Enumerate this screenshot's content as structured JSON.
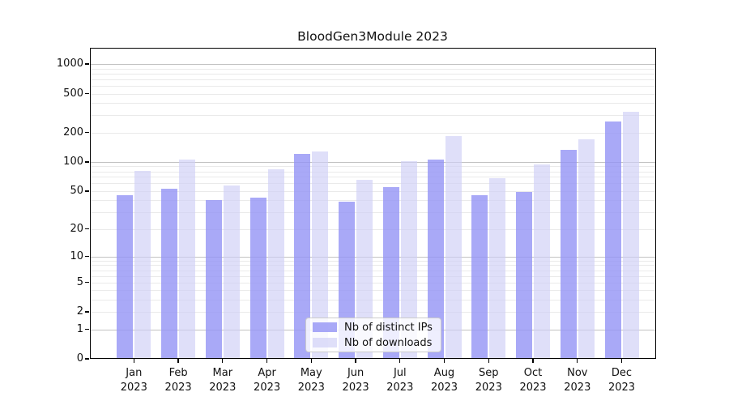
{
  "chart_data": {
    "type": "bar",
    "title": "BloodGen3Module 2023",
    "categories": [
      "Jan 2023",
      "Feb 2023",
      "Mar 2023",
      "Apr 2023",
      "May 2023",
      "Jun 2023",
      "Jul 2023",
      "Aug 2023",
      "Sep 2023",
      "Oct 2023",
      "Nov 2023",
      "Dec 2023"
    ],
    "series": [
      {
        "name": "Nb of distinct IPs",
        "color": "rgba(148,148,245,0.8)",
        "solid_color": "#a9a9f7",
        "values": [
          45,
          53,
          40,
          43,
          120,
          39,
          55,
          106,
          45,
          49,
          133,
          259
        ]
      },
      {
        "name": "Nb of downloads",
        "color": "rgba(206,206,246,0.65)",
        "solid_color": "#dedef9",
        "values": [
          81,
          105,
          57,
          84,
          127,
          66,
          101,
          184,
          68,
          95,
          172,
          324
        ]
      }
    ],
    "y_scale": "log10(value+1)",
    "y_ticks": [
      0,
      1,
      2,
      5,
      10,
      20,
      50,
      100,
      200,
      500,
      1000
    ],
    "y_major_gridlines": [
      1,
      10,
      100,
      1000
    ],
    "ylim": [
      0,
      1465
    ],
    "xlabel": "",
    "ylabel": "",
    "grid": "horizontal minor light gray, major darker gray",
    "legend_position": "inside bottom-center"
  },
  "colors": {
    "bar_distinct_ips": "#a9a9f7",
    "bar_downloads": "#dedef9",
    "grid_major": "#c2c2c2",
    "grid_minor": "#eaeaea",
    "axis": "#000000",
    "background": "#ffffff"
  }
}
